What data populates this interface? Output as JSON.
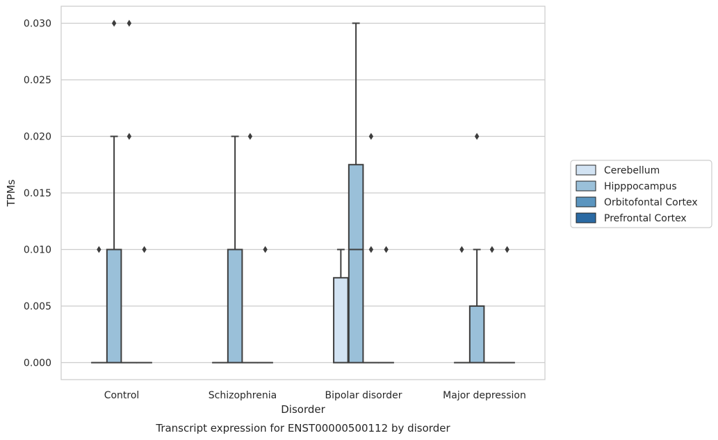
{
  "chart_data": {
    "type": "box",
    "title": "",
    "caption": "Transcript expression for ENST00000500112 by disorder",
    "xlabel": "Disorder",
    "ylabel": "TPMs",
    "categories": [
      "Control",
      "Schizophrenia",
      "Bipolar disorder",
      "Major depression"
    ],
    "y_ticks": [
      "0.000",
      "0.005",
      "0.010",
      "0.015",
      "0.020",
      "0.025",
      "0.030"
    ],
    "ylim": [
      -0.0015,
      0.0315
    ],
    "grid": "horizontal",
    "legend_position": "right",
    "series": [
      {
        "name": "Cerebellum",
        "color": "#d2e3f3",
        "boxes": [
          {
            "category": "Control",
            "q1": 0,
            "median": 0,
            "q3": 0,
            "whisker_low": 0,
            "whisker_high": 0,
            "outliers": [
              0.01
            ]
          },
          {
            "category": "Schizophrenia",
            "q1": 0,
            "median": 0,
            "q3": 0,
            "whisker_low": 0,
            "whisker_high": 0,
            "outliers": []
          },
          {
            "category": "Bipolar disorder",
            "q1": 0,
            "median": 0,
            "q3": 0.0075,
            "whisker_low": 0,
            "whisker_high": 0.01,
            "outliers": []
          },
          {
            "category": "Major depression",
            "q1": 0,
            "median": 0,
            "q3": 0,
            "whisker_low": 0,
            "whisker_high": 0,
            "outliers": [
              0.01
            ]
          }
        ]
      },
      {
        "name": "Hipppocampus",
        "color": "#9ac0d9",
        "boxes": [
          {
            "category": "Control",
            "q1": 0,
            "median": 0,
            "q3": 0.01,
            "whisker_low": 0,
            "whisker_high": 0.02,
            "outliers": [
              0.03
            ]
          },
          {
            "category": "Schizophrenia",
            "q1": 0,
            "median": 0,
            "q3": 0.01,
            "whisker_low": 0,
            "whisker_high": 0.02,
            "outliers": []
          },
          {
            "category": "Bipolar disorder",
            "q1": 0,
            "median": 0.01,
            "q3": 0.0175,
            "whisker_low": 0,
            "whisker_high": 0.03,
            "outliers": []
          },
          {
            "category": "Major depression",
            "q1": 0,
            "median": 0,
            "q3": 0.005,
            "whisker_low": 0,
            "whisker_high": 0.01,
            "outliers": [
              0.02
            ]
          }
        ]
      },
      {
        "name": "Orbitofontal Cortex",
        "color": "#5b95bf",
        "boxes": [
          {
            "category": "Control",
            "q1": 0,
            "median": 0,
            "q3": 0,
            "whisker_low": 0,
            "whisker_high": 0,
            "outliers": [
              0.03,
              0.02
            ]
          },
          {
            "category": "Schizophrenia",
            "q1": 0,
            "median": 0,
            "q3": 0,
            "whisker_low": 0,
            "whisker_high": 0,
            "outliers": [
              0.02
            ]
          },
          {
            "category": "Bipolar disorder",
            "q1": 0,
            "median": 0,
            "q3": 0,
            "whisker_low": 0,
            "whisker_high": 0,
            "outliers": [
              0.02,
              0.01
            ]
          },
          {
            "category": "Major depression",
            "q1": 0,
            "median": 0,
            "q3": 0,
            "whisker_low": 0,
            "whisker_high": 0,
            "outliers": [
              0.01
            ]
          }
        ]
      },
      {
        "name": "Prefrontal Cortex",
        "color": "#2b6aa3",
        "boxes": [
          {
            "category": "Control",
            "q1": 0,
            "median": 0,
            "q3": 0,
            "whisker_low": 0,
            "whisker_high": 0,
            "outliers": [
              0.01
            ]
          },
          {
            "category": "Schizophrenia",
            "q1": 0,
            "median": 0,
            "q3": 0,
            "whisker_low": 0,
            "whisker_high": 0,
            "outliers": [
              0.01
            ]
          },
          {
            "category": "Bipolar disorder",
            "q1": 0,
            "median": 0,
            "q3": 0,
            "whisker_low": 0,
            "whisker_high": 0,
            "outliers": [
              0.01
            ]
          },
          {
            "category": "Major depression",
            "q1": 0,
            "median": 0,
            "q3": 0,
            "whisker_low": 0,
            "whisker_high": 0,
            "outliers": [
              0.01
            ]
          }
        ]
      }
    ]
  }
}
